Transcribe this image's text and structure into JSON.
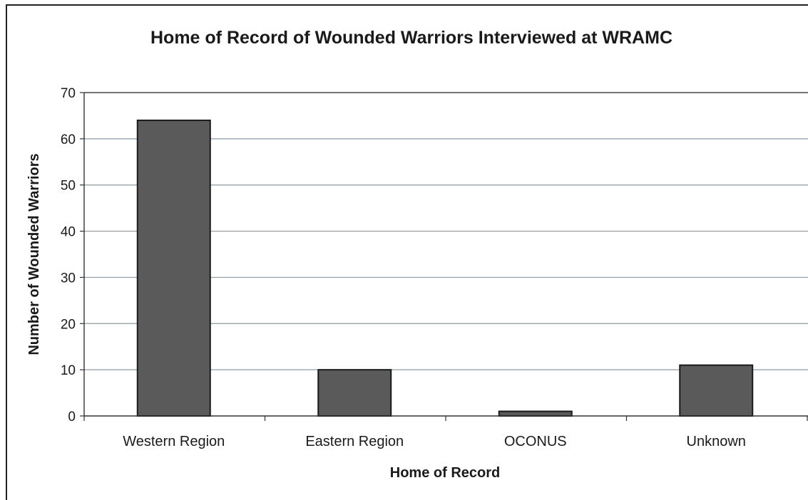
{
  "chart_data": {
    "type": "bar",
    "title": "Home of Record of Wounded Warriors Interviewed at WRAMC",
    "xlabel": "Home of Record",
    "ylabel": "Number of Wounded Warriors",
    "categories": [
      "Western Region",
      "Eastern Region",
      "OCONUS",
      "Unknown"
    ],
    "values": [
      64,
      10,
      1,
      11
    ],
    "ylim": [
      0,
      70
    ],
    "yticks": [
      "0",
      "10",
      "20",
      "30",
      "40",
      "50",
      "60",
      "70"
    ],
    "grid": true,
    "legend": "none",
    "colors": {
      "bar_fill": "#5a5a5a",
      "bar_stroke": "#1a1a1a",
      "grid": "#8a9aa8",
      "axis": "#333333"
    }
  }
}
